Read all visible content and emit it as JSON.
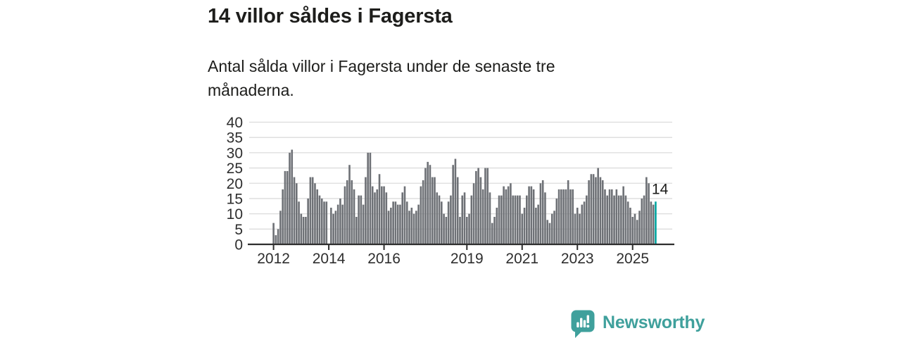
{
  "header": {
    "title": "14 villor såldes i Fagersta",
    "subtitle": "Antal sålda villor i Fagersta under de senaste tre\nmånaderna."
  },
  "chart_data": {
    "type": "bar",
    "title": "14 villor såldes i Fagersta",
    "subtitle": "Antal sålda villor i Fagersta under de senaste tre månaderna.",
    "xlabel": "",
    "ylabel": "",
    "x_unit": "month",
    "x_start": "2012-01",
    "x_end": "2025-11",
    "ylim": [
      0,
      40
    ],
    "yticks": [
      0,
      5,
      10,
      15,
      20,
      25,
      30,
      35,
      40
    ],
    "xtick_years": [
      2012,
      2014,
      2016,
      2019,
      2021,
      2023,
      2025
    ],
    "grid": true,
    "legend": "none",
    "bar_color": "#6e7176",
    "highlight_color": "#00a5a0",
    "highlight_index": 166,
    "highlight_label": "14",
    "axis_color": "#2e2e2e",
    "grid_color": "#dcdcdc",
    "text_color": "#1d1d1b",
    "tick_label_color": "#2e2e2e",
    "values": [
      7,
      3,
      5,
      11,
      18,
      24,
      24,
      30,
      31,
      22,
      20,
      14,
      10,
      9,
      9,
      15,
      22,
      22,
      20,
      18,
      16,
      15,
      14,
      14,
      0,
      12,
      10,
      11,
      13,
      15,
      13,
      19,
      21,
      26,
      21,
      18,
      9,
      16,
      16,
      13,
      22,
      30,
      30,
      19,
      17,
      18,
      23,
      19,
      19,
      17,
      11,
      12,
      14,
      14,
      13,
      13,
      17,
      19,
      14,
      11,
      12,
      10,
      11,
      13,
      19,
      21,
      25,
      27,
      26,
      22,
      22,
      17,
      16,
      14,
      10,
      9,
      14,
      16,
      26,
      28,
      22,
      9,
      16,
      17,
      9,
      10,
      16,
      20,
      24,
      25,
      22,
      18,
      25,
      25,
      17,
      7,
      9,
      12,
      16,
      16,
      19,
      18,
      19,
      20,
      16,
      16,
      16,
      16,
      10,
      12,
      16,
      19,
      19,
      18,
      12,
      13,
      20,
      21,
      17,
      8,
      7,
      10,
      11,
      15,
      18,
      18,
      18,
      18,
      21,
      18,
      18,
      10,
      12,
      10,
      13,
      14,
      16,
      21,
      23,
      23,
      22,
      25,
      22,
      21,
      18,
      16,
      18,
      18,
      16,
      18,
      16,
      16,
      19,
      16,
      14,
      12,
      9,
      10,
      8,
      11,
      15,
      16,
      22,
      20,
      14,
      13,
      14
    ]
  },
  "branding": {
    "logo_text": "Newsworthy",
    "logo_color": "#3fa09c",
    "logo_icon": "newsworthy-speech-bubble-bar-chart-icon"
  }
}
